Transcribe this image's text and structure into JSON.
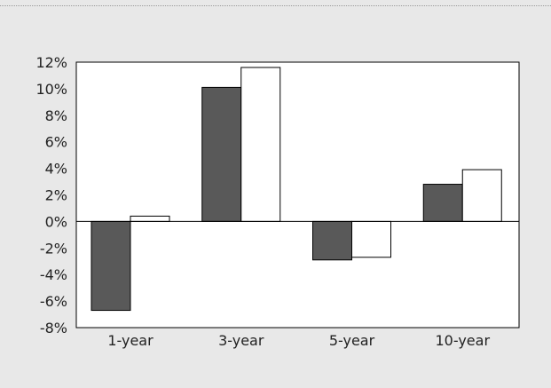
{
  "chart_data": {
    "type": "bar",
    "categories": [
      "1-year",
      "3-year",
      "5-year",
      "10-year"
    ],
    "series": [
      {
        "values": [
          -6.7,
          10.1,
          -2.9,
          2.8
        ],
        "color": "#595959"
      },
      {
        "values": [
          0.4,
          11.6,
          -2.7,
          3.9
        ],
        "color": "#ffffff"
      }
    ],
    "ylim": [
      -8,
      12
    ],
    "yticks": [
      12,
      10,
      8,
      6,
      4,
      2,
      0,
      -2,
      -4,
      -6,
      -8
    ],
    "ytick_labels": [
      "12%",
      "10%",
      "8%",
      "6%",
      "4%",
      "2%",
      "0%",
      "-2%",
      "-4%",
      "-6%",
      "-8%"
    ],
    "title": "",
    "xlabel": "",
    "ylabel": "",
    "grid": false,
    "legend": "none",
    "background_color": "#e8e8e8"
  }
}
